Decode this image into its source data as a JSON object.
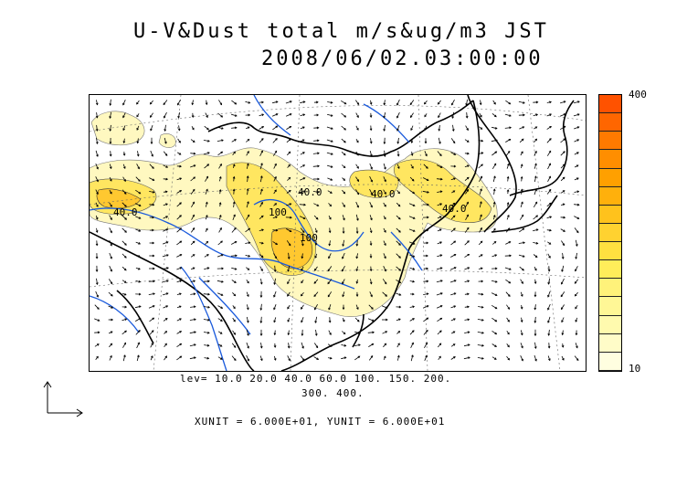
{
  "title": {
    "line1": "U-V&Dust total m/s&ug/m3 JST",
    "line2": "2008/06/02.03:00:00"
  },
  "colorbar": {
    "max_label": "400",
    "min_label": "10",
    "colors": [
      "#fffee0",
      "#fffcc8",
      "#fffaae",
      "#fff796",
      "#fff27a",
      "#ffed5a",
      "#ffe040",
      "#ffd230",
      "#ffc21c",
      "#ffb00c",
      "#ffa000",
      "#ff8e00",
      "#ff7a00",
      "#ff6600",
      "#ff5200"
    ]
  },
  "levels": {
    "line1": "lev= 10.0 20.0 40.0 60.0 100. 150. 200.",
    "line2": "300. 400."
  },
  "units": "XUNIT = 6.000E+01, YUNIT = 6.000E+01",
  "contour_labels": [
    "40.0",
    "40.0",
    "40.0",
    "40.0",
    "100",
    "100"
  ]
}
